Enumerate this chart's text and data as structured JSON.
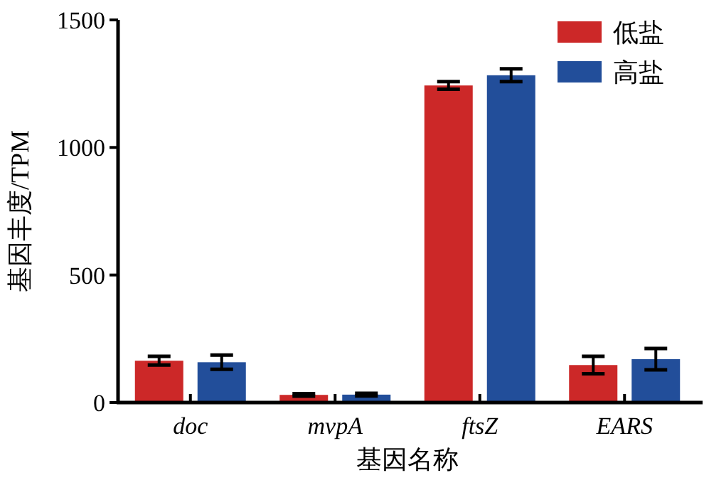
{
  "chart_data": {
    "type": "bar",
    "xlabel": "基因名称",
    "ylabel": "基因丰度/TPM",
    "categories": [
      "doc",
      "mvpA",
      "ftsZ",
      "EARS"
    ],
    "series": [
      {
        "name": "低盐",
        "color": "#cc2828",
        "values": [
          164,
          30,
          1243,
          147
        ],
        "errors": [
          17,
          5,
          15,
          34
        ]
      },
      {
        "name": "高盐",
        "color": "#224e9a",
        "values": [
          158,
          31,
          1283,
          170
        ],
        "errors": [
          28,
          5,
          25,
          42
        ]
      }
    ],
    "ylim": [
      0,
      1500
    ],
    "yticks": [
      0,
      500,
      1000,
      1500
    ],
    "grid": false,
    "legend": "top right"
  }
}
